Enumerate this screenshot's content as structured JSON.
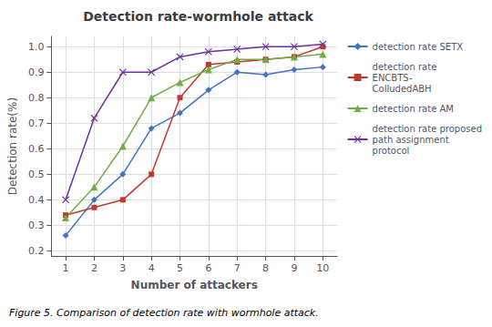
{
  "chart_data": {
    "type": "line",
    "title": "Detection rate-wormhole attack",
    "xlabel": "Number of attackers",
    "ylabel": "Detection rate(%)",
    "caption": "Figure 5. Comparison of detection rate with wormhole attack.",
    "x": [
      1,
      2,
      3,
      4,
      5,
      6,
      7,
      8,
      9,
      10
    ],
    "series": [
      {
        "name": "detection rate SETX",
        "color": "#4472C4",
        "marker": "diamond",
        "values": [
          0.26,
          0.4,
          0.5,
          0.68,
          0.74,
          0.83,
          0.9,
          0.89,
          0.91,
          0.92
        ]
      },
      {
        "name": "detection rate\nENCBTS-\nColludedABH",
        "color": "#C0392B",
        "marker": "square",
        "values": [
          0.34,
          0.37,
          0.4,
          0.5,
          0.8,
          0.93,
          0.94,
          0.95,
          0.96,
          1.0
        ]
      },
      {
        "name": "detection rate AM",
        "color": "#70AD47",
        "marker": "triangle",
        "values": [
          0.33,
          0.45,
          0.61,
          0.8,
          0.86,
          0.91,
          0.95,
          0.95,
          0.96,
          0.97
        ]
      },
      {
        "name": "detection rate proposed\npath assignment\nprotocol",
        "color": "#7030A0",
        "marker": "x",
        "values": [
          0.4,
          0.72,
          0.9,
          0.9,
          0.96,
          0.98,
          0.99,
          1.0,
          1.0,
          1.01
        ]
      }
    ],
    "xlim": [
      0.5,
      10.5
    ],
    "ylim": [
      0.18,
      1.04
    ],
    "xticks": [
      1,
      2,
      3,
      4,
      5,
      6,
      7,
      8,
      9,
      10
    ],
    "yticks": [
      0.2,
      0.3,
      0.4,
      0.5,
      0.6,
      0.7,
      0.8,
      0.9,
      {
        "value": 1.0,
        "label": "1.0"
      }
    ],
    "grid": true,
    "legend": "right"
  }
}
